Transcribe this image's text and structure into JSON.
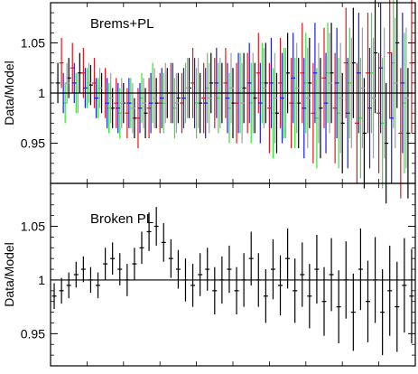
{
  "chart_data": [
    {
      "type": "scatter",
      "title": "",
      "annotation": "Brems+PL",
      "xlabel": "",
      "ylabel": "Data/Model",
      "ylim": [
        0.91,
        1.09
      ],
      "yticks": [
        0.95,
        1,
        1.05
      ],
      "ytick_labels": [
        "0.95",
        "1",
        "1.05"
      ],
      "reference_line": 1.0,
      "grid": false,
      "legend": "none",
      "series": [
        {
          "color": "#000000",
          "x": [
            0.02,
            0.05,
            0.08,
            0.11,
            0.14,
            0.17,
            0.2,
            0.23,
            0.26,
            0.29,
            0.32,
            0.35,
            0.38,
            0.41,
            0.44,
            0.47,
            0.5,
            0.53,
            0.56,
            0.59,
            0.62,
            0.65,
            0.68,
            0.71,
            0.74,
            0.77,
            0.8,
            0.83,
            0.86,
            0.89,
            0.92,
            0.95,
            0.98
          ],
          "y": [
            1.01,
            1.015,
            1.02,
            1.008,
            1.0,
            0.985,
            0.99,
            0.975,
            0.98,
            0.99,
            1.0,
            0.995,
            1.005,
            0.99,
            1.01,
            1.0,
            0.99,
            1.005,
            0.995,
            1.01,
            0.98,
            1.02,
            0.99,
            1.01,
            0.985,
            1.02,
            0.97,
            1.03,
            0.96,
            1.04,
            0.95,
            1.05,
            0.96
          ],
          "err": [
            0.02,
            0.02,
            0.02,
            0.02,
            0.02,
            0.02,
            0.02,
            0.02,
            0.025,
            0.025,
            0.025,
            0.025,
            0.03,
            0.03,
            0.03,
            0.03,
            0.035,
            0.035,
            0.035,
            0.04,
            0.04,
            0.04,
            0.045,
            0.045,
            0.05,
            0.05,
            0.05,
            0.055,
            0.055,
            0.06,
            0.06,
            0.065,
            0.065
          ]
        },
        {
          "color": "#e8141a",
          "x": [
            0.03,
            0.06,
            0.09,
            0.12,
            0.15,
            0.18,
            0.21,
            0.24,
            0.27,
            0.3,
            0.33,
            0.36,
            0.39,
            0.42,
            0.45,
            0.48,
            0.51,
            0.54,
            0.57,
            0.6,
            0.63,
            0.66,
            0.69,
            0.72,
            0.75,
            0.78,
            0.81,
            0.84,
            0.87,
            0.9,
            0.93,
            0.96,
            0.99
          ],
          "y": [
            1.03,
            1.025,
            1.02,
            1.01,
            1.0,
            0.99,
            0.98,
            0.975,
            0.985,
            0.99,
            1.0,
            0.99,
            1.01,
            0.995,
            1.0,
            1.01,
            0.99,
            1.0,
            1.02,
            0.985,
            1.01,
            0.99,
            1.02,
            0.98,
            1.015,
            0.985,
            1.03,
            0.97,
            1.02,
            0.98,
            1.04,
            0.96,
            1.03
          ],
          "err": [
            0.025,
            0.025,
            0.025,
            0.025,
            0.025,
            0.025,
            0.025,
            0.03,
            0.03,
            0.03,
            0.03,
            0.03,
            0.035,
            0.035,
            0.035,
            0.035,
            0.04,
            0.04,
            0.04,
            0.045,
            0.045,
            0.045,
            0.05,
            0.05,
            0.05,
            0.055,
            0.055,
            0.06,
            0.06,
            0.06,
            0.065,
            0.065,
            0.07
          ]
        },
        {
          "color": "#2ee82e",
          "x": [
            0.04,
            0.07,
            0.1,
            0.13,
            0.16,
            0.19,
            0.22,
            0.25,
            0.28,
            0.31,
            0.34,
            0.37,
            0.4,
            0.43,
            0.46,
            0.49,
            0.52,
            0.55,
            0.58,
            0.61,
            0.64,
            0.67,
            0.7,
            0.73,
            0.76,
            0.79,
            0.82,
            0.85,
            0.88,
            0.91,
            0.94,
            0.97
          ],
          "y": [
            0.99,
            1.0,
            1.005,
            0.995,
            0.985,
            0.98,
            0.99,
            0.995,
            1.0,
            0.99,
            0.985,
            1.0,
            0.99,
            1.005,
            0.995,
            0.985,
            1.0,
            0.99,
            1.01,
            0.98,
            1.0,
            0.99,
            1.01,
            0.975,
            1.02,
            0.98,
            1.01,
            0.975,
            1.02,
            0.97,
            1.03,
            0.99
          ],
          "err": [
            0.02,
            0.02,
            0.02,
            0.02,
            0.025,
            0.025,
            0.025,
            0.025,
            0.03,
            0.03,
            0.03,
            0.03,
            0.035,
            0.035,
            0.035,
            0.035,
            0.04,
            0.04,
            0.04,
            0.045,
            0.045,
            0.045,
            0.05,
            0.05,
            0.05,
            0.055,
            0.055,
            0.06,
            0.06,
            0.065,
            0.065,
            0.07
          ]
        },
        {
          "color": "#1a1ae8",
          "x": [
            0.035,
            0.065,
            0.095,
            0.125,
            0.155,
            0.185,
            0.215,
            0.245,
            0.275,
            0.305,
            0.335,
            0.365,
            0.395,
            0.425,
            0.455,
            0.485,
            0.515,
            0.545,
            0.575,
            0.605,
            0.635,
            0.665,
            0.695,
            0.725,
            0.755,
            0.785,
            0.815,
            0.845,
            0.875,
            0.905,
            0.935,
            0.965
          ],
          "y": [
            1.0,
            1.01,
            1.005,
            0.995,
            0.99,
            0.985,
            0.99,
            0.985,
            0.99,
            0.995,
            1.0,
            0.995,
            1.0,
            0.99,
            1.01,
            0.995,
            1.0,
            1.01,
            0.99,
            1.01,
            0.995,
            1.015,
            0.985,
            1.02,
            0.99,
            1.01,
            0.98,
            1.02,
            0.985,
            1.025,
            0.975,
            1.01
          ],
          "err": [
            0.02,
            0.02,
            0.02,
            0.02,
            0.025,
            0.025,
            0.025,
            0.025,
            0.03,
            0.03,
            0.03,
            0.03,
            0.035,
            0.035,
            0.035,
            0.035,
            0.04,
            0.04,
            0.04,
            0.045,
            0.045,
            0.045,
            0.05,
            0.05,
            0.05,
            0.055,
            0.055,
            0.06,
            0.06,
            0.065,
            0.065,
            0.07
          ]
        },
        {
          "color": "#9aa0a6",
          "x": [
            0.045,
            0.075,
            0.105,
            0.135,
            0.165,
            0.195,
            0.225,
            0.255,
            0.285,
            0.315,
            0.345,
            0.375,
            0.405,
            0.435,
            0.465,
            0.495,
            0.525,
            0.555,
            0.585,
            0.615,
            0.645,
            0.675,
            0.705,
            0.735,
            0.765,
            0.795,
            0.825,
            0.855,
            0.885,
            0.915,
            0.945,
            0.975
          ],
          "y": [
            1.01,
            1.0,
            1.01,
            1.005,
            0.995,
            0.99,
            0.985,
            0.99,
            0.995,
            1.0,
            0.99,
            1.005,
            1.0,
            0.995,
            1.0,
            1.005,
            0.99,
            1.0,
            1.005,
            0.995,
            1.0,
            1.005,
            0.995,
            1.0,
            1.01,
            0.995,
            1.0,
            1.005,
            0.995,
            1.0,
            1.01,
            0.995
          ],
          "err": [
            0.02,
            0.02,
            0.02,
            0.02,
            0.025,
            0.025,
            0.025,
            0.025,
            0.03,
            0.03,
            0.03,
            0.03,
            0.035,
            0.035,
            0.035,
            0.035,
            0.04,
            0.04,
            0.04,
            0.045,
            0.045,
            0.045,
            0.05,
            0.05,
            0.05,
            0.055,
            0.055,
            0.06,
            0.06,
            0.065,
            0.065,
            0.07
          ]
        }
      ]
    },
    {
      "type": "scatter",
      "title": "",
      "annotation": "Broken PL",
      "xlabel": "",
      "ylabel": "Data/Model",
      "ylim": [
        0.92,
        1.09
      ],
      "yticks": [
        0.95,
        1,
        1.05
      ],
      "ytick_labels": [
        "0.95",
        "1",
        "1.05"
      ],
      "reference_line": 1.0,
      "grid": false,
      "legend": "none",
      "series": [
        {
          "color": "#000000",
          "x": [
            0.01,
            0.03,
            0.05,
            0.07,
            0.09,
            0.11,
            0.13,
            0.15,
            0.17,
            0.19,
            0.21,
            0.23,
            0.25,
            0.27,
            0.29,
            0.31,
            0.33,
            0.35,
            0.37,
            0.39,
            0.41,
            0.43,
            0.45,
            0.47,
            0.49,
            0.51,
            0.53,
            0.55,
            0.57,
            0.59,
            0.61,
            0.63,
            0.65,
            0.67,
            0.69,
            0.71,
            0.73,
            0.75,
            0.77,
            0.79,
            0.81,
            0.83,
            0.85,
            0.87,
            0.89,
            0.91,
            0.93,
            0.95,
            0.97,
            0.99
          ],
          "y": [
            0.985,
            0.99,
            0.995,
            1.005,
            1.01,
            1.0,
            0.995,
            1.015,
            1.02,
            1.01,
            1.0,
            1.015,
            1.03,
            1.045,
            1.05,
            1.035,
            1.02,
            1.01,
            1.0,
            0.995,
            1.005,
            1.01,
            0.99,
            1.0,
            1.01,
            0.99,
            1.0,
            1.02,
            1.0,
            0.985,
            1.01,
            0.995,
            1.02,
            0.99,
            1.005,
            0.985,
            1.01,
            0.98,
            1.005,
            0.975,
            1.0,
            0.97,
            1.01,
            0.98,
            1.0,
            0.97,
            0.99,
            0.975,
            0.995,
            0.985
          ],
          "err": [
            0.012,
            0.012,
            0.012,
            0.012,
            0.012,
            0.012,
            0.012,
            0.015,
            0.015,
            0.015,
            0.015,
            0.015,
            0.015,
            0.018,
            0.018,
            0.018,
            0.018,
            0.018,
            0.02,
            0.02,
            0.02,
            0.02,
            0.022,
            0.022,
            0.022,
            0.022,
            0.025,
            0.025,
            0.025,
            0.025,
            0.028,
            0.028,
            0.028,
            0.03,
            0.03,
            0.03,
            0.032,
            0.032,
            0.034,
            0.034,
            0.036,
            0.036,
            0.038,
            0.038,
            0.04,
            0.04,
            0.042,
            0.042,
            0.044,
            0.044
          ]
        }
      ]
    }
  ]
}
